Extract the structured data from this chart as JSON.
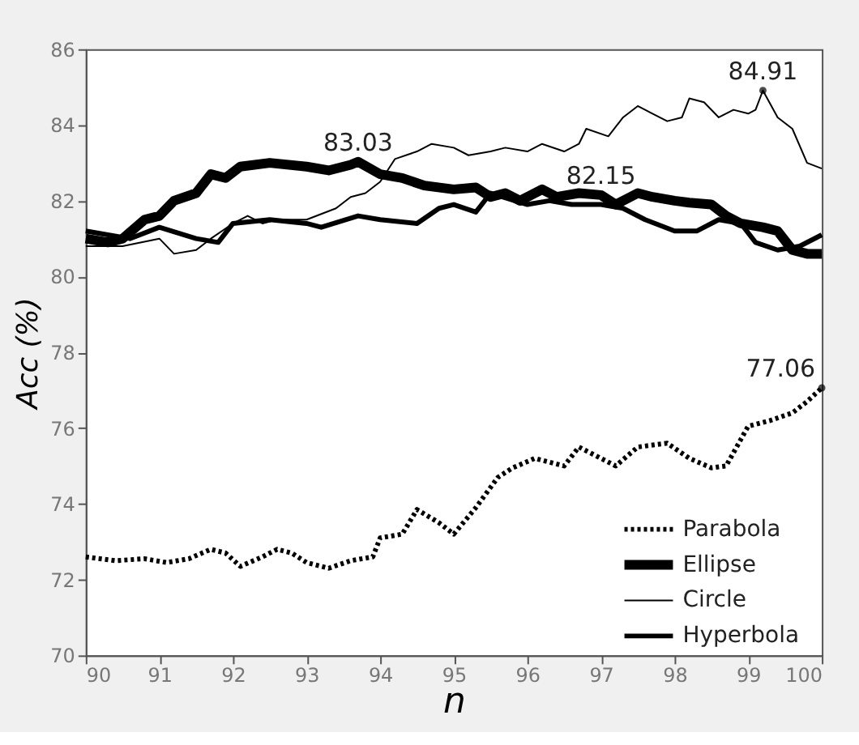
{
  "chart_data": {
    "type": "line",
    "xlabel": "n",
    "ylabel": "Acc (%)",
    "xlim": [
      90,
      100
    ],
    "ylim": [
      70,
      86
    ],
    "xticks": [
      90,
      91,
      92,
      93,
      94,
      95,
      96,
      97,
      98,
      99,
      100
    ],
    "yticks": [
      70,
      72,
      74,
      76,
      78,
      80,
      82,
      84,
      86
    ],
    "grid": false,
    "legend": "bottom right",
    "marker": "none",
    "series": [
      {
        "name": "Parabola",
        "color": "#000000",
        "line_style": "dotted",
        "x": [
          90,
          90.4,
          90.8,
          91.1,
          91.4,
          91.7,
          91.9,
          92.1,
          92.4,
          92.6,
          92.8,
          93,
          93.3,
          93.6,
          93.9,
          94,
          94.3,
          94.5,
          94.8,
          95,
          95.3,
          95.6,
          95.8,
          96.1,
          96.5,
          96.7,
          97,
          97.2,
          97.5,
          97.9,
          98.2,
          98.5,
          98.7,
          98.9,
          99,
          99.3,
          99.6,
          99.8,
          100
        ],
        "values": [
          72.6,
          72.5,
          72.55,
          72.45,
          72.55,
          72.8,
          72.7,
          72.35,
          72.6,
          72.8,
          72.7,
          72.45,
          72.3,
          72.5,
          72.6,
          73.1,
          73.2,
          73.85,
          73.5,
          73.2,
          73.9,
          74.7,
          74.95,
          75.2,
          75.0,
          75.5,
          75.2,
          75.0,
          75.5,
          75.6,
          75.2,
          74.95,
          75.0,
          75.7,
          76.05,
          76.2,
          76.4,
          76.7,
          77.06
        ]
      },
      {
        "name": "Ellipse",
        "color": "#000000",
        "line_style": "solid",
        "x": [
          90,
          90.3,
          90.5,
          90.8,
          91,
          91.2,
          91.5,
          91.7,
          91.9,
          92.1,
          92.5,
          93,
          93.3,
          93.6,
          93.7,
          94,
          94.3,
          94.6,
          95,
          95.3,
          95.5,
          95.7,
          95.9,
          96.2,
          96.4,
          96.7,
          97,
          97.2,
          97.5,
          97.7,
          98,
          98.2,
          98.5,
          98.7,
          98.9,
          99.2,
          99.4,
          99.6,
          99.8,
          100
        ],
        "values": [
          81.0,
          80.9,
          81.0,
          81.5,
          81.6,
          82.0,
          82.2,
          82.7,
          82.6,
          82.9,
          83.0,
          82.9,
          82.8,
          82.95,
          83.03,
          82.7,
          82.6,
          82.4,
          82.3,
          82.35,
          82.1,
          82.2,
          82.0,
          82.3,
          82.1,
          82.2,
          82.15,
          81.9,
          82.2,
          82.1,
          82.0,
          81.95,
          81.9,
          81.6,
          81.4,
          81.3,
          81.2,
          80.7,
          80.6,
          80.6
        ]
      },
      {
        "name": "Circle",
        "color": "#000000",
        "line_style": "solid",
        "x": [
          90,
          90.5,
          91,
          91.2,
          91.5,
          91.7,
          92,
          92.2,
          92.4,
          92.6,
          93,
          93.4,
          93.6,
          93.8,
          94,
          94.2,
          94.5,
          94.7,
          95,
          95.2,
          95.5,
          95.7,
          96,
          96.2,
          96.5,
          96.7,
          96.8,
          97.1,
          97.3,
          97.5,
          97.7,
          97.9,
          98.1,
          98.2,
          98.4,
          98.6,
          98.8,
          99,
          99.1,
          99.2,
          99.4,
          99.6,
          99.8,
          100
        ],
        "values": [
          80.8,
          80.8,
          81.0,
          80.6,
          80.7,
          81.0,
          81.4,
          81.6,
          81.4,
          81.5,
          81.5,
          81.8,
          82.1,
          82.2,
          82.5,
          83.1,
          83.3,
          83.5,
          83.4,
          83.2,
          83.3,
          83.4,
          83.3,
          83.5,
          83.3,
          83.5,
          83.9,
          83.7,
          84.2,
          84.5,
          84.3,
          84.1,
          84.2,
          84.7,
          84.6,
          84.2,
          84.4,
          84.3,
          84.4,
          84.91,
          84.2,
          83.9,
          83.0,
          82.85
        ]
      },
      {
        "name": "Hyperbola",
        "color": "#000000",
        "line_style": "solid",
        "x": [
          90,
          90.3,
          90.6,
          91,
          91.5,
          91.8,
          92,
          92.5,
          93,
          93.2,
          93.7,
          94,
          94.5,
          94.8,
          95,
          95.3,
          95.5,
          96,
          96.3,
          96.6,
          97,
          97.3,
          97.6,
          98,
          98.3,
          98.6,
          98.9,
          99.1,
          99.4,
          99.7,
          100
        ],
        "values": [
          81.2,
          81.1,
          81.0,
          81.3,
          81.0,
          80.9,
          81.4,
          81.5,
          81.4,
          81.3,
          81.6,
          81.5,
          81.4,
          81.8,
          81.9,
          81.7,
          82.2,
          81.9,
          82.0,
          81.9,
          81.9,
          81.8,
          81.5,
          81.2,
          81.2,
          81.5,
          81.4,
          80.9,
          80.7,
          80.8,
          81.1
        ]
      }
    ],
    "annotations": [
      {
        "text": "83.03",
        "x": 93.7,
        "y": 83.03
      },
      {
        "text": "82.15",
        "x": 97.0,
        "y": 82.15
      },
      {
        "text": "84.91",
        "x": 99.2,
        "y": 84.91
      },
      {
        "text": "77.06",
        "x": 100,
        "y": 77.06
      }
    ]
  }
}
